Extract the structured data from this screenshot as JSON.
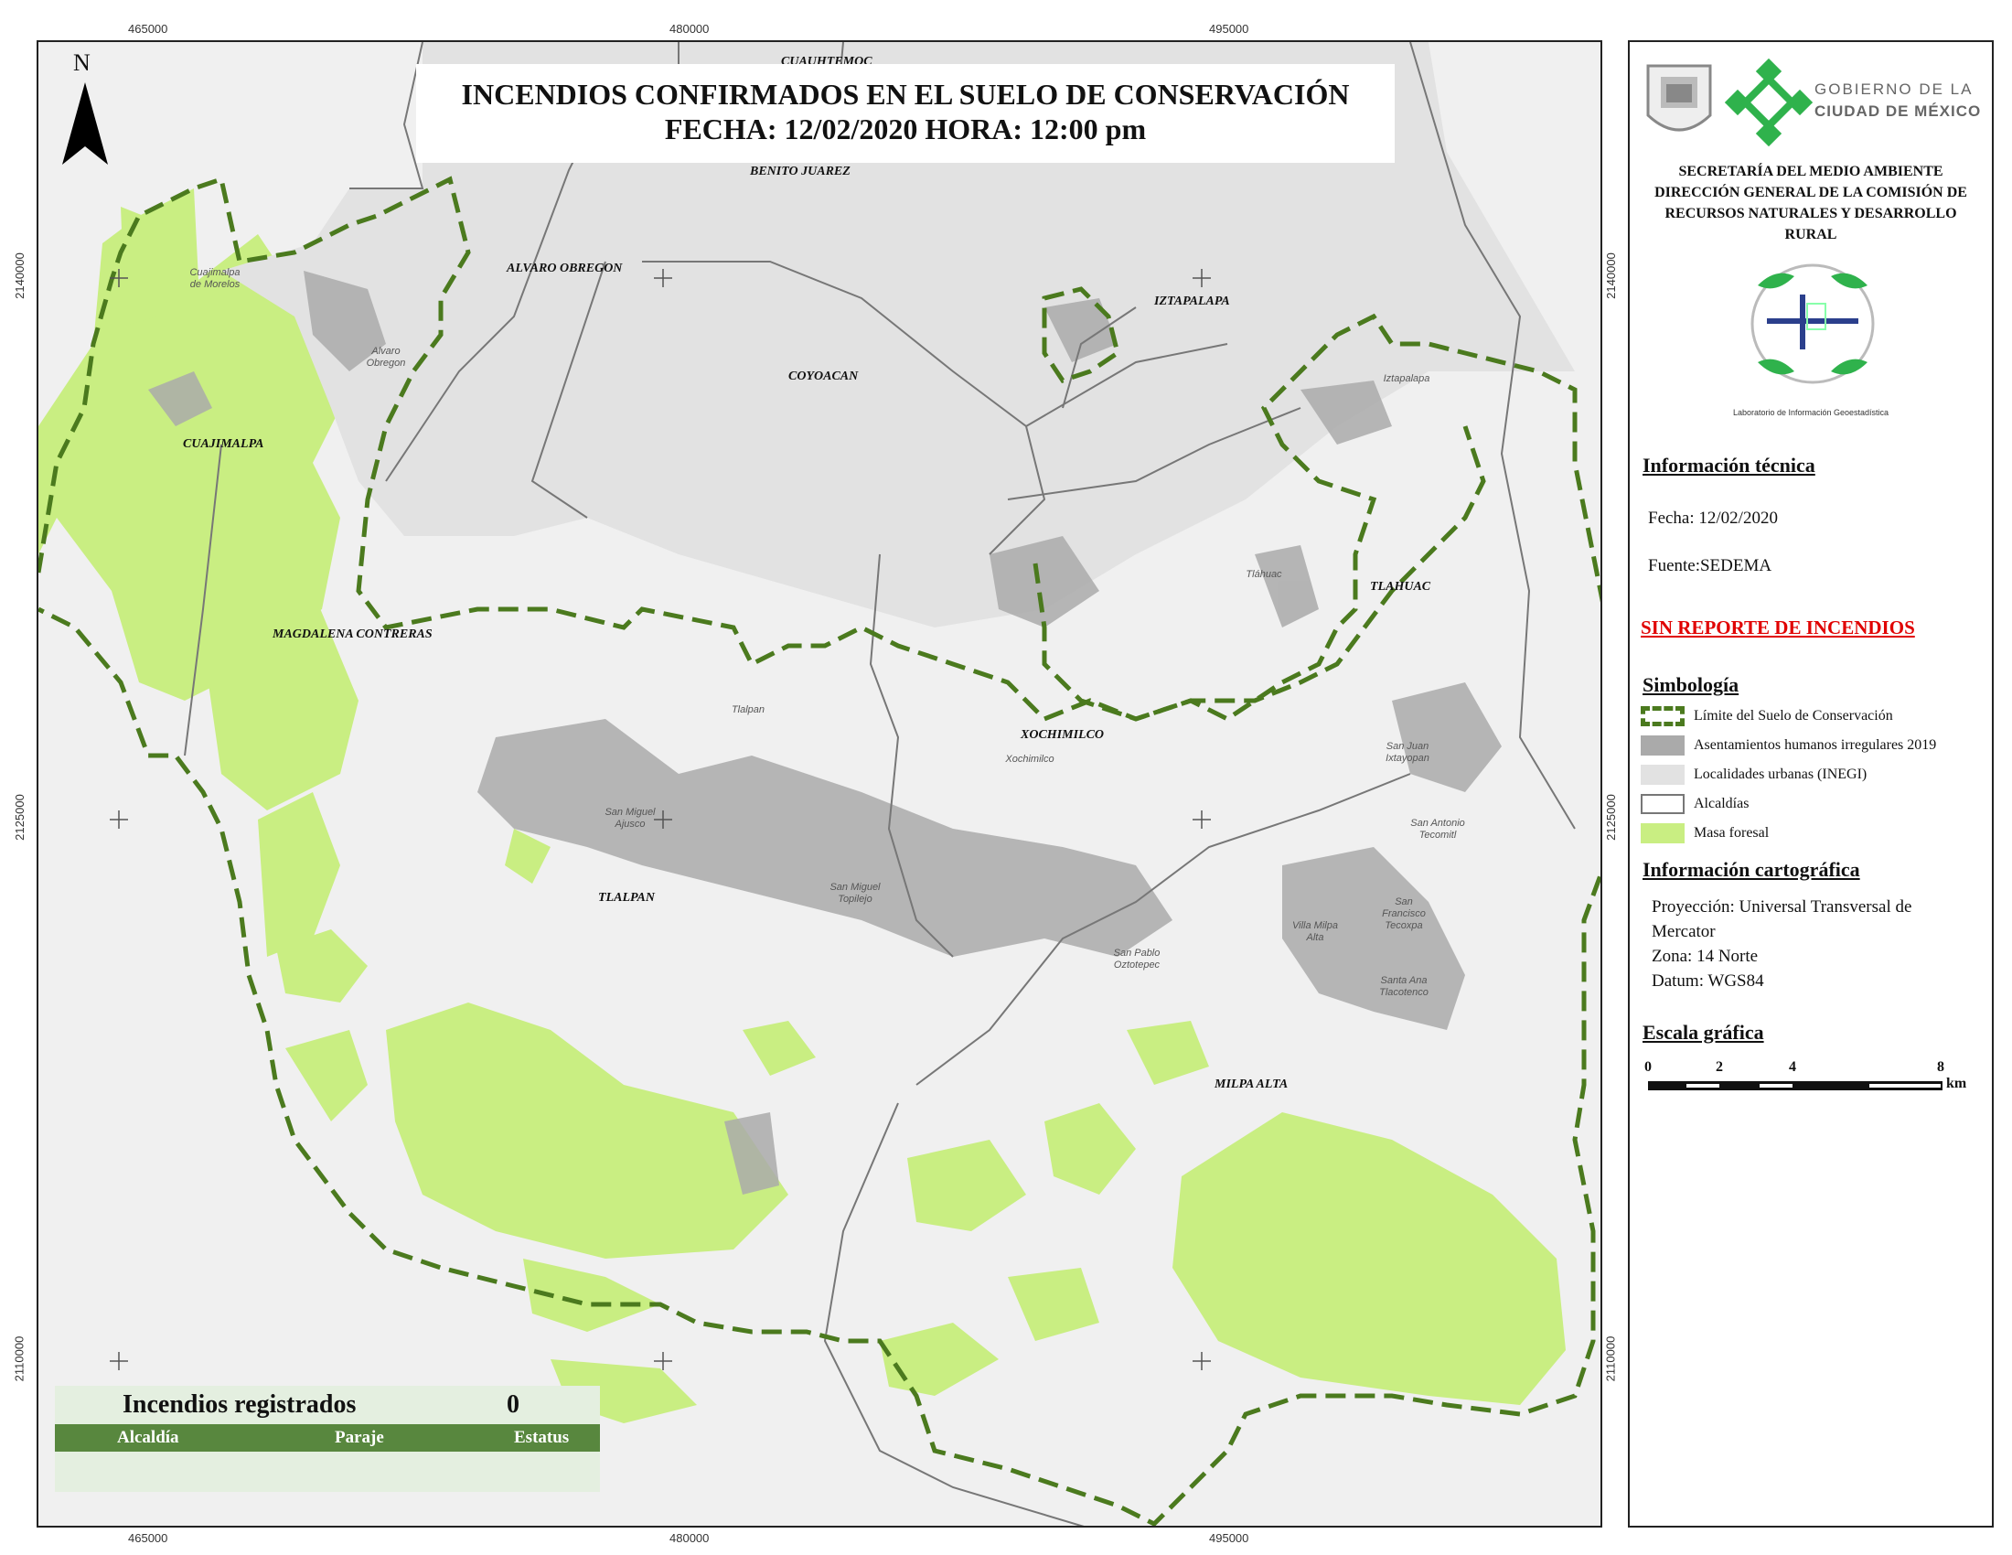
{
  "map": {
    "title_line1": "INCENDIOS CONFIRMADOS EN EL SUELO DE CONSERVACIÓN",
    "title_line2": "FECHA: 12/02/2020 HORA: 12:00 pm",
    "north_label": "N",
    "x_coords": [
      "465000",
      "480000",
      "495000"
    ],
    "y_coords": [
      "2140000",
      "2125000",
      "2110000"
    ],
    "alcaldias": [
      "CUAUHTEMOC",
      "BENITO JUAREZ",
      "ALVARO OBREGON",
      "IZTAPALAPA",
      "COYOACAN",
      "CUAJIMALPA",
      "MAGDALENA CONTRERAS",
      "TLAHUAC",
      "XOCHIMILCO",
      "TLALPAN",
      "MILPA ALTA"
    ],
    "localidades": [
      "Cuajimalpa de Morelos",
      "Alvaro Obregon",
      "Iztapalapa",
      "Tláhuac",
      "Tlalpan",
      "Xochimilco",
      "San Juan Ixtayopan",
      "San Miguel Ajusco",
      "San Antonio Tecomitl",
      "San Miguel Topilejo",
      "San Francisco Tecoxpa",
      "Villa Milpa Alta",
      "San Pablo Oztotepec",
      "Santa Ana Tlacotenco"
    ],
    "colors": {
      "forest": "#c9ee82",
      "boundary": "#4b7a1e",
      "settlement": "#aaaaaa",
      "urban": "#e2e2e2",
      "alcaldia_line": "#777777"
    }
  },
  "fires_table": {
    "title": "Incendios registrados",
    "count": "0",
    "columns": [
      "Alcaldía",
      "Paraje",
      "Estatus"
    ]
  },
  "panel": {
    "logo_text_line1": "GOBIERNO DE LA",
    "logo_text_line2": "CIUDAD DE MÉXICO",
    "agency_line1": "SECRETARÍA DEL MEDIO AMBIENTE",
    "agency_line2": "DIRECCIÓN GENERAL DE LA COMISIÓN DE",
    "agency_line3": "RECURSOS NATURALES Y DESARROLLO",
    "agency_line4": "RURAL",
    "lab_logo_text": "Laboratorio de Información Geoestadística",
    "tech_info_heading": "Información técnica",
    "fecha": "Fecha: 12/02/2020",
    "fuente": "Fuente:SEDEMA",
    "no_report": "SIN REPORTE DE INCENDIOS",
    "legend_heading": "Simbología",
    "legend_items": [
      "Límite del Suelo de Conservación",
      "Asentamientos humanos irregulares 2019",
      "Localidades urbanas (INEGI)",
      "Alcaldías",
      "Masa foresal"
    ],
    "carto_heading": "Información cartográfica",
    "projection_line1": "Proyección: Universal Transversal de",
    "projection_line2": "Mercator",
    "zone": "Zona: 14 Norte",
    "datum": "Datum: WGS84",
    "scale_heading": "Escala gráfica",
    "scale_ticks": [
      "0",
      "2",
      "4",
      "8"
    ],
    "scale_unit": "km",
    "no_report_color": "#e00000"
  }
}
